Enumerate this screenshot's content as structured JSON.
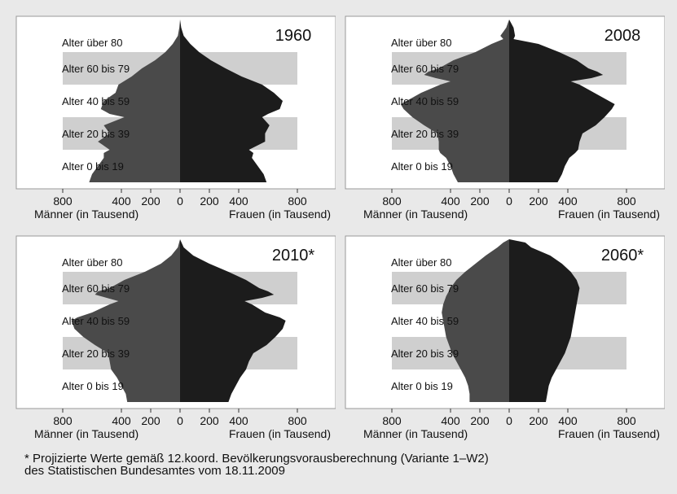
{
  "chart_data": [
    {
      "type": "population-pyramid",
      "title": "1960",
      "age_bands": [
        "Alter über 80",
        "Alter 60 bis 79",
        "Alter 40 bis 59",
        "Alter 20 bis 39",
        "Alter 0 bis 19"
      ],
      "x_ticks": [
        "800",
        "400",
        "200",
        "0",
        "200",
        "400",
        "800"
      ],
      "xlabel_left": "Männer (in Tausend)",
      "xlabel_right": "Frauen (in Tausend)",
      "xlim": [
        0,
        800
      ],
      "age_range": [
        0,
        100
      ],
      "series": [
        {
          "name": "Männer",
          "ages": [
            0,
            5,
            10,
            15,
            18,
            20,
            25,
            30,
            35,
            40,
            42,
            45,
            50,
            55,
            60,
            65,
            70,
            75,
            80,
            85,
            90,
            95,
            100
          ],
          "values": [
            620,
            600,
            560,
            520,
            520,
            480,
            560,
            480,
            520,
            380,
            480,
            540,
            520,
            440,
            420,
            330,
            260,
            170,
            100,
            50,
            15,
            5,
            0
          ]
        },
        {
          "name": "Frauen",
          "ages": [
            0,
            5,
            10,
            15,
            18,
            20,
            25,
            30,
            35,
            40,
            42,
            45,
            50,
            55,
            60,
            65,
            70,
            75,
            80,
            85,
            90,
            95,
            100
          ],
          "values": [
            590,
            570,
            530,
            490,
            500,
            470,
            580,
            580,
            610,
            560,
            600,
            680,
            700,
            640,
            560,
            420,
            310,
            210,
            130,
            70,
            25,
            8,
            0
          ]
        }
      ]
    },
    {
      "type": "population-pyramid",
      "title": "2008",
      "age_bands": [
        "Alter über 80",
        "Alter 60 bis 79",
        "Alter 40 bis 59",
        "Alter 20 bis 39",
        "Alter 0 bis 19"
      ],
      "x_ticks": [
        "800",
        "400",
        "200",
        "0",
        "200",
        "400",
        "800"
      ],
      "xlabel_left": "Männer (in Tausend)",
      "xlabel_right": "Frauen (in Tausend)",
      "xlim": [
        0,
        800
      ],
      "age_range": [
        0,
        100
      ],
      "series": [
        {
          "name": "Männer",
          "ages": [
            0,
            5,
            10,
            15,
            18,
            20,
            25,
            30,
            35,
            40,
            45,
            48,
            50,
            55,
            60,
            62,
            64,
            66,
            68,
            70,
            75,
            80,
            85,
            88,
            90,
            95,
            100
          ],
          "values": [
            350,
            380,
            400,
            430,
            470,
            480,
            480,
            490,
            580,
            660,
            720,
            740,
            700,
            600,
            470,
            400,
            500,
            580,
            550,
            480,
            380,
            230,
            120,
            40,
            60,
            20,
            0
          ]
        },
        {
          "name": "Frauen",
          "ages": [
            0,
            5,
            10,
            15,
            18,
            20,
            25,
            30,
            35,
            40,
            45,
            48,
            50,
            55,
            60,
            62,
            64,
            66,
            68,
            70,
            75,
            80,
            85,
            88,
            90,
            95,
            100
          ],
          "values": [
            330,
            360,
            380,
            410,
            450,
            470,
            480,
            500,
            590,
            650,
            700,
            720,
            680,
            580,
            480,
            420,
            560,
            640,
            600,
            540,
            460,
            340,
            200,
            30,
            40,
            30,
            0
          ]
        }
      ]
    },
    {
      "type": "population-pyramid",
      "title": "2010*",
      "age_bands": [
        "Alter über 80",
        "Alter 60 bis 79",
        "Alter 40 bis 59",
        "Alter 20 bis 39",
        "Alter 0 bis 19"
      ],
      "x_ticks": [
        "800",
        "400",
        "200",
        "0",
        "200",
        "400",
        "800"
      ],
      "xlabel_left": "Männer (in Tausend)",
      "xlabel_right": "Frauen (in Tausend)",
      "xlim": [
        0,
        800
      ],
      "age_range": [
        0,
        100
      ],
      "series": [
        {
          "name": "Männer",
          "ages": [
            0,
            5,
            10,
            15,
            20,
            25,
            30,
            35,
            40,
            45,
            50,
            52,
            55,
            60,
            62,
            64,
            66,
            68,
            70,
            75,
            80,
            85,
            90,
            95,
            100
          ],
          "values": [
            360,
            370,
            400,
            430,
            470,
            480,
            490,
            580,
            660,
            720,
            740,
            700,
            600,
            480,
            420,
            500,
            580,
            560,
            480,
            380,
            240,
            130,
            60,
            15,
            0
          ]
        },
        {
          "name": "Frauen",
          "ages": [
            0,
            5,
            10,
            15,
            20,
            25,
            30,
            35,
            40,
            45,
            50,
            52,
            55,
            60,
            62,
            64,
            66,
            68,
            70,
            75,
            80,
            85,
            90,
            95,
            100
          ],
          "values": [
            330,
            350,
            380,
            410,
            450,
            470,
            500,
            590,
            650,
            700,
            720,
            680,
            580,
            490,
            440,
            560,
            640,
            600,
            540,
            450,
            330,
            200,
            90,
            25,
            0
          ]
        }
      ]
    },
    {
      "type": "population-pyramid",
      "title": "2060*",
      "age_bands": [
        "Alter über 80",
        "Alter 60 bis 79",
        "Alter 40 bis 59",
        "Alter 20 bis 39",
        "Alter 0 bis 19"
      ],
      "x_ticks": [
        "800",
        "400",
        "200",
        "0",
        "200",
        "400",
        "800"
      ],
      "xlabel_left": "Männer (in Tausend)",
      "xlabel_right": "Frauen (in Tausend)",
      "xlim": [
        0,
        800
      ],
      "age_range": [
        0,
        100
      ],
      "series": [
        {
          "name": "Männer",
          "ages": [
            0,
            5,
            10,
            15,
            20,
            25,
            30,
            35,
            40,
            45,
            50,
            55,
            60,
            65,
            70,
            75,
            80,
            85,
            90,
            95,
            98,
            100
          ],
          "values": [
            270,
            270,
            280,
            300,
            330,
            360,
            390,
            410,
            430,
            440,
            450,
            460,
            450,
            430,
            400,
            360,
            300,
            230,
            160,
            80,
            40,
            0
          ]
        },
        {
          "name": "Frauen",
          "ages": [
            0,
            5,
            10,
            15,
            20,
            25,
            30,
            35,
            40,
            45,
            50,
            55,
            60,
            65,
            70,
            75,
            80,
            85,
            90,
            95,
            98,
            100
          ],
          "values": [
            250,
            260,
            270,
            290,
            320,
            350,
            380,
            400,
            420,
            430,
            440,
            450,
            460,
            470,
            480,
            460,
            420,
            360,
            280,
            150,
            110,
            0
          ]
        }
      ]
    }
  ],
  "footnote": {
    "line1": "* Projizierte Werte gemäß 12.koord. Bevölkerungsvorausberechnung (Variante 1–W2)",
    "line2": "des Statistischen Bundesamtes vom 18.11.2009"
  },
  "colors": {
    "men": "#4a4a4a",
    "women": "#1c1c1c",
    "band": "#cfcfcf",
    "panel_bg": "#ffffff",
    "page_bg": "#e9e9e9"
  }
}
